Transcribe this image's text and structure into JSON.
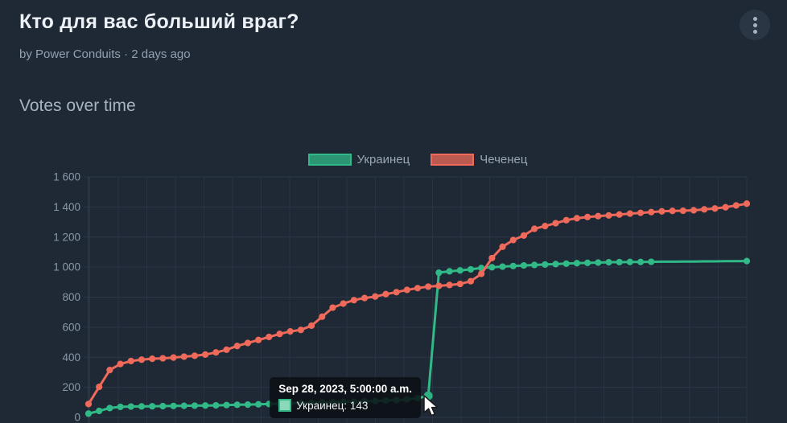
{
  "header": {
    "title": "Кто для вас больший враг?",
    "byline": "by Power Conduits · 2 days ago",
    "menu_icon": "kebab-menu-icon"
  },
  "section": {
    "title": "Votes over time"
  },
  "chart_data": {
    "type": "line",
    "title": "Votes over time",
    "xlabel": "",
    "ylabel": "",
    "ylim": [
      0,
      1600
    ],
    "ytick_step": 200,
    "ytick_labels": [
      "0",
      "200",
      "400",
      "600",
      "800",
      "1 000",
      "1 200",
      "1 400",
      "1 600"
    ],
    "grid": true,
    "legend_position": "top",
    "series": [
      {
        "name": "Украинец",
        "color": "#31b987",
        "values": [
          25,
          43,
          62,
          70,
          72,
          73,
          74,
          75,
          76,
          77,
          78,
          79,
          80,
          82,
          84,
          85,
          87,
          89,
          91,
          93,
          95,
          97,
          99,
          101,
          103,
          105,
          107,
          109,
          112,
          115,
          120,
          128,
          143,
          963,
          972,
          978,
          985,
          994,
          999,
          1003,
          1007,
          1011,
          1014,
          1017,
          1020,
          1023,
          1026,
          1028,
          1030,
          1032,
          1033,
          1034,
          1034,
          1035,
          1036,
          1036,
          1037,
          1037,
          1038,
          1038,
          1039,
          1039,
          1040
        ]
      },
      {
        "name": "Чеченец",
        "color": "#ef6a5a",
        "values": [
          89,
          203,
          315,
          355,
          375,
          384,
          390,
          393,
          398,
          404,
          410,
          418,
          432,
          450,
          475,
          495,
          515,
          535,
          555,
          572,
          582,
          610,
          670,
          730,
          757,
          780,
          794,
          804,
          820,
          833,
          848,
          860,
          870,
          875,
          881,
          888,
          906,
          955,
          1060,
          1135,
          1180,
          1210,
          1255,
          1273,
          1292,
          1312,
          1325,
          1333,
          1339,
          1344,
          1350,
          1356,
          1361,
          1366,
          1371,
          1374,
          1375,
          1378,
          1384,
          1390,
          1398,
          1410,
          1422
        ]
      }
    ]
  },
  "tooltip": {
    "date": "Sep 28, 2023, 5:00:00 a.m.",
    "series": "Украинец",
    "value": 143,
    "label": "Украинец: 143",
    "series_index": 0,
    "point_index": 32,
    "swatch_fill": "#8bd8ba"
  },
  "colors": {
    "background": "#1f2936",
    "grid": "#2b3646",
    "axis_line": "#334153",
    "axis_text": "#8b98a6",
    "green": "#31b987",
    "red": "#ef6a5a"
  }
}
